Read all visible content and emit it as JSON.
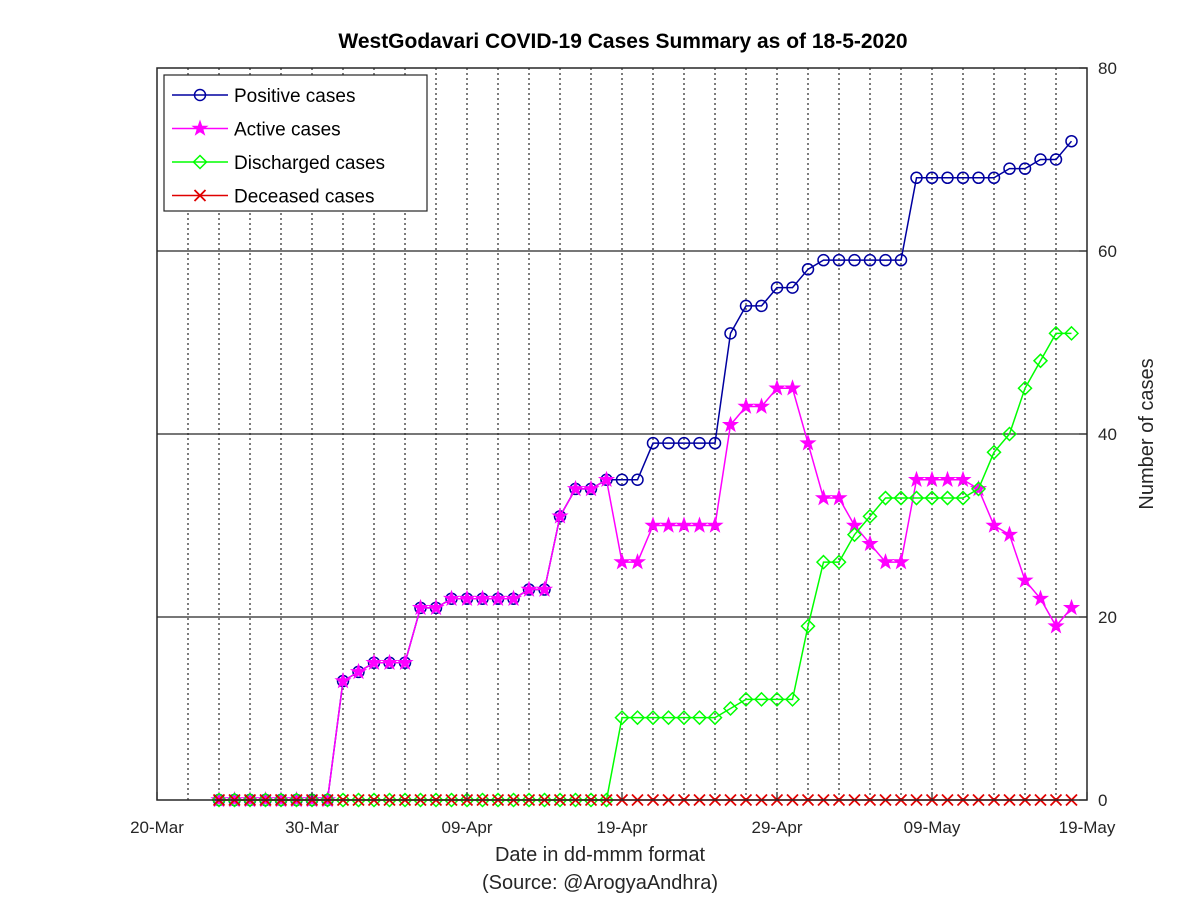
{
  "chart_data": {
    "type": "line",
    "title": "WestGodavari COVID-19 Cases Summary as of 18-5-2020",
    "xlabel": "Date in dd-mmm format",
    "xlabel2": "(Source: @ArogyaAndhra)",
    "ylabel": "Number of cases",
    "xlim": [
      "2020-03-20",
      "2020-05-19"
    ],
    "ylim": [
      0,
      80
    ],
    "x_ticks": [
      "20-Mar",
      "30-Mar",
      "09-Apr",
      "19-Apr",
      "29-Apr",
      "09-May",
      "19-May"
    ],
    "y_ticks": [
      0,
      20,
      40,
      60,
      80
    ],
    "y_axis_side": "right",
    "grid": {
      "x": "dotted",
      "y": "solid"
    },
    "legend_position": "top-left",
    "x": [
      "2020-03-24",
      "2020-03-25",
      "2020-03-26",
      "2020-03-27",
      "2020-03-28",
      "2020-03-29",
      "2020-03-30",
      "2020-03-31",
      "2020-04-01",
      "2020-04-02",
      "2020-04-03",
      "2020-04-04",
      "2020-04-05",
      "2020-04-06",
      "2020-04-07",
      "2020-04-08",
      "2020-04-09",
      "2020-04-10",
      "2020-04-11",
      "2020-04-12",
      "2020-04-13",
      "2020-04-14",
      "2020-04-15",
      "2020-04-16",
      "2020-04-17",
      "2020-04-18",
      "2020-04-19",
      "2020-04-20",
      "2020-04-21",
      "2020-04-22",
      "2020-04-23",
      "2020-04-24",
      "2020-04-25",
      "2020-04-26",
      "2020-04-27",
      "2020-04-28",
      "2020-04-29",
      "2020-04-30",
      "2020-05-01",
      "2020-05-02",
      "2020-05-03",
      "2020-05-04",
      "2020-05-05",
      "2020-05-06",
      "2020-05-07",
      "2020-05-08",
      "2020-05-09",
      "2020-05-10",
      "2020-05-11",
      "2020-05-12",
      "2020-05-13",
      "2020-05-14",
      "2020-05-15",
      "2020-05-16",
      "2020-05-17",
      "2020-05-18"
    ],
    "series": [
      {
        "name": "Positive cases",
        "color": "#0000a0",
        "marker": "circle",
        "values": [
          0,
          0,
          0,
          0,
          0,
          0,
          0,
          0,
          13,
          14,
          15,
          15,
          15,
          21,
          21,
          22,
          22,
          22,
          22,
          22,
          23,
          23,
          31,
          34,
          34,
          35,
          35,
          35,
          39,
          39,
          39,
          39,
          39,
          51,
          54,
          54,
          56,
          56,
          58,
          59,
          59,
          59,
          59,
          59,
          59,
          68,
          68,
          68,
          68,
          68,
          68,
          69,
          69,
          70,
          70,
          72
        ]
      },
      {
        "name": "Active cases",
        "color": "#ff00ff",
        "marker": "star",
        "values": [
          0,
          0,
          0,
          0,
          0,
          0,
          0,
          0,
          13,
          14,
          15,
          15,
          15,
          21,
          21,
          22,
          22,
          22,
          22,
          22,
          23,
          23,
          31,
          34,
          34,
          35,
          26,
          26,
          30,
          30,
          30,
          30,
          30,
          41,
          43,
          43,
          45,
          45,
          39,
          33,
          33,
          30,
          28,
          26,
          26,
          35,
          35,
          35,
          35,
          34,
          30,
          29,
          24,
          22,
          19,
          21
        ]
      },
      {
        "name": "Discharged cases",
        "color": "#00ff00",
        "marker": "diamond",
        "values": [
          0,
          0,
          0,
          0,
          0,
          0,
          0,
          0,
          0,
          0,
          0,
          0,
          0,
          0,
          0,
          0,
          0,
          0,
          0,
          0,
          0,
          0,
          0,
          0,
          0,
          0,
          9,
          9,
          9,
          9,
          9,
          9,
          9,
          10,
          11,
          11,
          11,
          11,
          19,
          26,
          26,
          29,
          31,
          33,
          33,
          33,
          33,
          33,
          33,
          34,
          38,
          40,
          45,
          48,
          51,
          51
        ]
      },
      {
        "name": "Deceased cases",
        "color": "#e00000",
        "marker": "x",
        "values": [
          0,
          0,
          0,
          0,
          0,
          0,
          0,
          0,
          0,
          0,
          0,
          0,
          0,
          0,
          0,
          0,
          0,
          0,
          0,
          0,
          0,
          0,
          0,
          0,
          0,
          0,
          0,
          0,
          0,
          0,
          0,
          0,
          0,
          0,
          0,
          0,
          0,
          0,
          0,
          0,
          0,
          0,
          0,
          0,
          0,
          0,
          0,
          0,
          0,
          0,
          0,
          0,
          0,
          0,
          0,
          0
        ]
      }
    ]
  }
}
